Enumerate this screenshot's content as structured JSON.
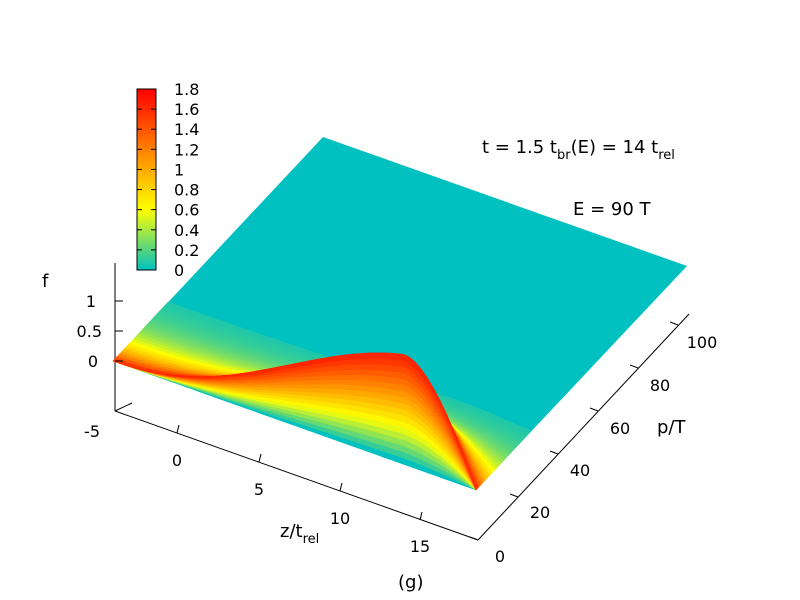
{
  "chart_data": {
    "type": "surface",
    "title": "",
    "caption": "(g)",
    "xlabel": {
      "main": "z/t",
      "sub": "rel"
    },
    "ylabel": "p/T",
    "zlabel": "f",
    "x_ticks": [
      "0",
      "5",
      "10",
      "15"
    ],
    "y_ticks": [
      "0",
      "20",
      "40",
      "60",
      "80",
      "100"
    ],
    "z_ticks": [
      "-5",
      "0",
      "0.5",
      "1"
    ],
    "x_range": [
      -3,
      18
    ],
    "y_range": [
      0,
      110
    ],
    "z_range": [
      -5,
      1.5
    ],
    "colorbar": {
      "range": [
        0,
        1.8
      ],
      "ticks": [
        "1.8",
        "1.6",
        "1.4",
        "1.2",
        "1",
        "0.8",
        "0.6",
        "0.4",
        "0.2",
        "0"
      ],
      "colors": [
        "#00c0c0",
        "#ffff00",
        "#ff8000",
        "#ff0000"
      ]
    },
    "annotations": [
      {
        "parts": [
          {
            "t": "t = 1.5 t",
            "sub": false
          },
          {
            "t": "br",
            "sub": true
          },
          {
            "t": "(E) = 14 t",
            "sub": false
          },
          {
            "t": "rel",
            "sub": true
          }
        ]
      },
      {
        "parts": [
          {
            "t": "E = 90 T",
            "sub": false
          }
        ]
      }
    ],
    "surface_peak": {
      "z_at_peak": 10,
      "p_at_peak": 0,
      "f_max": 1.8
    }
  }
}
